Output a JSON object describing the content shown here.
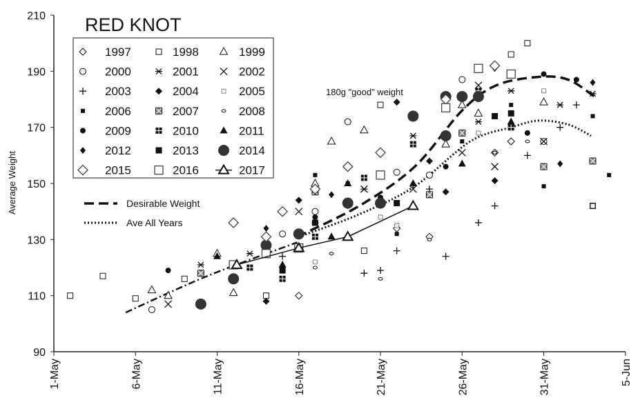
{
  "chart_data": {
    "type": "scatter",
    "title": "RED KNOT",
    "xlabel": "",
    "ylabel": "Average Weight",
    "ylim": [
      90,
      210
    ],
    "yticks": [
      90,
      110,
      130,
      150,
      170,
      190,
      210
    ],
    "xlim_day_of_may": [
      1,
      36
    ],
    "xticks": [
      {
        "label": "1-May",
        "day": 1
      },
      {
        "label": "6-May",
        "day": 6
      },
      {
        "label": "11-May",
        "day": 11
      },
      {
        "label": "16-May",
        "day": 16
      },
      {
        "label": "21-May",
        "day": 21
      },
      {
        "label": "26-May",
        "day": 26
      },
      {
        "label": "31-May",
        "day": 31
      },
      {
        "label": "5-Jun",
        "day": 36
      }
    ],
    "annotation": "180g \"good\" weight",
    "legend_position": "top-left",
    "series": [
      {
        "name": "1997",
        "marker": "diamond-open",
        "points": [
          [
            16,
            110
          ],
          [
            22,
            134
          ],
          [
            24,
            131
          ],
          [
            25,
            166
          ],
          [
            28,
            161
          ],
          [
            29,
            165
          ]
        ]
      },
      {
        "name": "1998",
        "marker": "square-open",
        "points": [
          [
            2,
            110
          ],
          [
            4,
            117
          ],
          [
            6,
            109
          ],
          [
            9,
            116
          ],
          [
            14,
            110
          ],
          [
            20,
            126
          ],
          [
            21,
            178
          ],
          [
            29,
            196
          ],
          [
            30,
            200
          ],
          [
            34,
            142
          ]
        ]
      },
      {
        "name": "1999",
        "marker": "triangle-open",
        "points": [
          [
            7,
            112
          ],
          [
            8,
            110
          ],
          [
            11,
            125
          ],
          [
            12,
            111
          ],
          [
            17,
            150
          ],
          [
            18,
            165
          ],
          [
            20,
            169
          ],
          [
            25,
            164
          ],
          [
            26,
            178
          ],
          [
            27,
            175
          ],
          [
            31,
            179
          ]
        ]
      },
      {
        "name": "2000",
        "marker": "circle-open",
        "points": [
          [
            7,
            105
          ],
          [
            15,
            132
          ],
          [
            17,
            140
          ],
          [
            19,
            172
          ],
          [
            22,
            154
          ],
          [
            24,
            153
          ],
          [
            26,
            187
          ],
          [
            31,
            165
          ]
        ]
      },
      {
        "name": "2001",
        "marker": "asterisk",
        "points": [
          [
            10,
            121
          ],
          [
            13,
            125
          ],
          [
            17,
            136
          ],
          [
            20,
            148
          ],
          [
            23,
            167
          ],
          [
            27,
            172
          ],
          [
            29,
            183
          ],
          [
            32,
            178
          ],
          [
            34,
            182
          ]
        ]
      },
      {
        "name": "2002",
        "marker": "x",
        "points": [
          [
            8,
            107
          ],
          [
            16,
            140
          ],
          [
            20,
            148
          ],
          [
            23,
            148
          ],
          [
            26,
            161
          ],
          [
            27,
            185
          ],
          [
            28,
            156
          ],
          [
            31,
            165
          ]
        ]
      },
      {
        "name": "2003",
        "marker": "plus",
        "points": [
          [
            15,
            124
          ],
          [
            20,
            118
          ],
          [
            21,
            119
          ],
          [
            22,
            126
          ],
          [
            24,
            148
          ],
          [
            25,
            124
          ],
          [
            27,
            136
          ],
          [
            28,
            142
          ],
          [
            30,
            160
          ],
          [
            32,
            170
          ],
          [
            33,
            178
          ]
        ]
      },
      {
        "name": "2004",
        "marker": "diamond-filled",
        "points": [
          [
            14,
            108
          ],
          [
            16,
            144
          ],
          [
            22,
            179
          ],
          [
            24,
            158
          ],
          [
            25,
            147
          ],
          [
            28,
            151
          ]
        ]
      },
      {
        "name": "2005",
        "marker": "square-dotted",
        "points": [
          [
            17,
            122
          ],
          [
            21,
            138
          ],
          [
            22,
            135
          ],
          [
            27,
            168
          ],
          [
            31,
            183
          ],
          [
            34,
            142
          ]
        ]
      },
      {
        "name": "2006",
        "marker": "square-small-filled",
        "points": [
          [
            17,
            153
          ],
          [
            19,
            150
          ],
          [
            22,
            132
          ],
          [
            26,
            165
          ],
          [
            29,
            178
          ],
          [
            31,
            149
          ],
          [
            34,
            174
          ],
          [
            35,
            153
          ]
        ]
      },
      {
        "name": "2007",
        "marker": "square-hatched",
        "points": [
          [
            10,
            118
          ],
          [
            12,
            121
          ],
          [
            17,
            147
          ],
          [
            21,
            153
          ],
          [
            24,
            146
          ],
          [
            26,
            168
          ],
          [
            31,
            156
          ],
          [
            34,
            158
          ]
        ]
      },
      {
        "name": "2008",
        "marker": "oval-small",
        "points": [
          [
            17,
            120
          ],
          [
            18,
            125
          ],
          [
            21,
            116
          ],
          [
            24,
            130
          ],
          [
            28,
            161
          ],
          [
            30,
            165
          ]
        ]
      },
      {
        "name": "2009",
        "marker": "circle-filled",
        "points": [
          [
            8,
            119
          ],
          [
            14,
            131
          ],
          [
            17,
            138
          ],
          [
            21,
            145
          ],
          [
            25,
            156
          ],
          [
            30,
            168
          ],
          [
            31,
            189
          ],
          [
            33,
            187
          ]
        ]
      },
      {
        "name": "2010",
        "marker": "square-grid",
        "points": [
          [
            13,
            120
          ],
          [
            15,
            116
          ],
          [
            17,
            131
          ],
          [
            20,
            152
          ],
          [
            23,
            164
          ],
          [
            27,
            183
          ],
          [
            29,
            170
          ]
        ]
      },
      {
        "name": "2011",
        "marker": "triangle-filled",
        "points": [
          [
            11,
            124
          ],
          [
            15,
            121
          ],
          [
            18,
            131
          ],
          [
            19,
            150
          ],
          [
            23,
            150
          ],
          [
            26,
            157
          ],
          [
            29,
            172
          ]
        ]
      },
      {
        "name": "2012",
        "marker": "diamond-small-filled",
        "points": [
          [
            14,
            134
          ],
          [
            15,
            119
          ],
          [
            18,
            146
          ],
          [
            19,
            142
          ],
          [
            24,
            158
          ],
          [
            28,
            191
          ],
          [
            32,
            157
          ],
          [
            34,
            186
          ]
        ]
      },
      {
        "name": "2013",
        "marker": "square-filled",
        "points": [
          [
            14,
            126
          ],
          [
            15,
            119
          ],
          [
            17,
            136
          ],
          [
            22,
            143
          ],
          [
            28,
            174
          ],
          [
            29,
            175
          ]
        ]
      },
      {
        "name": "2014",
        "marker": "circle-big-filled",
        "points": [
          [
            10,
            107
          ],
          [
            12,
            116
          ],
          [
            14,
            128
          ],
          [
            16,
            132
          ],
          [
            19,
            143
          ],
          [
            21,
            143
          ],
          [
            23,
            174
          ],
          [
            25,
            167
          ],
          [
            25,
            181
          ],
          [
            26,
            181
          ],
          [
            27,
            181
          ]
        ]
      },
      {
        "name": "2015",
        "marker": "diamond-big-open",
        "points": [
          [
            12,
            136
          ],
          [
            14,
            131
          ],
          [
            15,
            140
          ],
          [
            17,
            148
          ],
          [
            19,
            156
          ],
          [
            21,
            161
          ],
          [
            25,
            180
          ],
          [
            28,
            192
          ]
        ]
      },
      {
        "name": "2016",
        "marker": "square-big-open",
        "points": [
          [
            12,
            121
          ],
          [
            14,
            125
          ],
          [
            16,
            127
          ],
          [
            21,
            153
          ],
          [
            25,
            177
          ],
          [
            27,
            191
          ],
          [
            29,
            189
          ]
        ]
      },
      {
        "name": "2017",
        "marker": "triangle-big-line",
        "points": [
          [
            12.2,
            121
          ],
          [
            16,
            127
          ],
          [
            19,
            131
          ],
          [
            23,
            142
          ]
        ]
      }
    ],
    "lines": [
      {
        "name": "Desirable Weight",
        "style": "dashed",
        "points": [
          [
            15.9,
            131
          ],
          [
            19.7,
            142
          ],
          [
            23.1,
            156
          ],
          [
            26,
            176
          ],
          [
            28.1,
            185
          ],
          [
            30.7,
            188
          ],
          [
            32.5,
            187
          ],
          [
            34.1,
            181
          ]
        ]
      },
      {
        "name": "Ave All Years",
        "style": "dotted",
        "points": [
          [
            16,
            131
          ],
          [
            19.7,
            139
          ],
          [
            23.1,
            149
          ],
          [
            26.5,
            165
          ],
          [
            29,
            170
          ],
          [
            30.7,
            172.4
          ],
          [
            32.5,
            171
          ],
          [
            33.9,
            167
          ]
        ]
      },
      {
        "name": "",
        "style": "dash-dot",
        "points": [
          [
            5.4,
            104
          ],
          [
            10.4,
            117
          ],
          [
            15.9,
            129
          ]
        ]
      }
    ]
  }
}
